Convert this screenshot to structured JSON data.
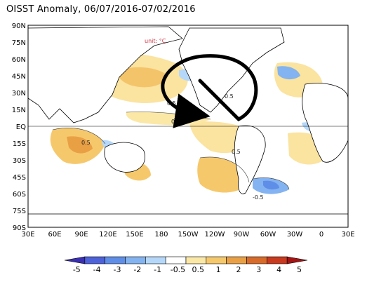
{
  "title": "OISST Anomaly, 06/07/2016-07/02/2016",
  "unit_label": "unit: °C",
  "lat_ticks": [
    "90N",
    "75N",
    "60N",
    "45N",
    "30N",
    "15N",
    "EQ",
    "15S",
    "30S",
    "45S",
    "60S",
    "75S",
    "90S"
  ],
  "lon_ticks": [
    "30E",
    "60E",
    "90E",
    "120E",
    "150E",
    "180",
    "150W",
    "120W",
    "90W",
    "60W",
    "30W",
    "0",
    "30E"
  ],
  "colorbar": {
    "labels": [
      "-5",
      "-4",
      "-3",
      "-2",
      "-1",
      "-0.5",
      "0.5",
      "1",
      "2",
      "3",
      "4",
      "5"
    ],
    "colors": [
      "#3a2fb0",
      "#4d62d9",
      "#5f8ee8",
      "#83b3f0",
      "#b5d8fa",
      "#ffffff",
      "#fbe8a6",
      "#f6c86c",
      "#e9a045",
      "#d86a2a",
      "#c93a1e",
      "#a31414"
    ]
  },
  "contour_labels": [
    "0.5",
    "0.5",
    "0.5",
    "0.5",
    "0.5",
    "-0.5"
  ],
  "arrow": {
    "color": "#000000"
  }
}
